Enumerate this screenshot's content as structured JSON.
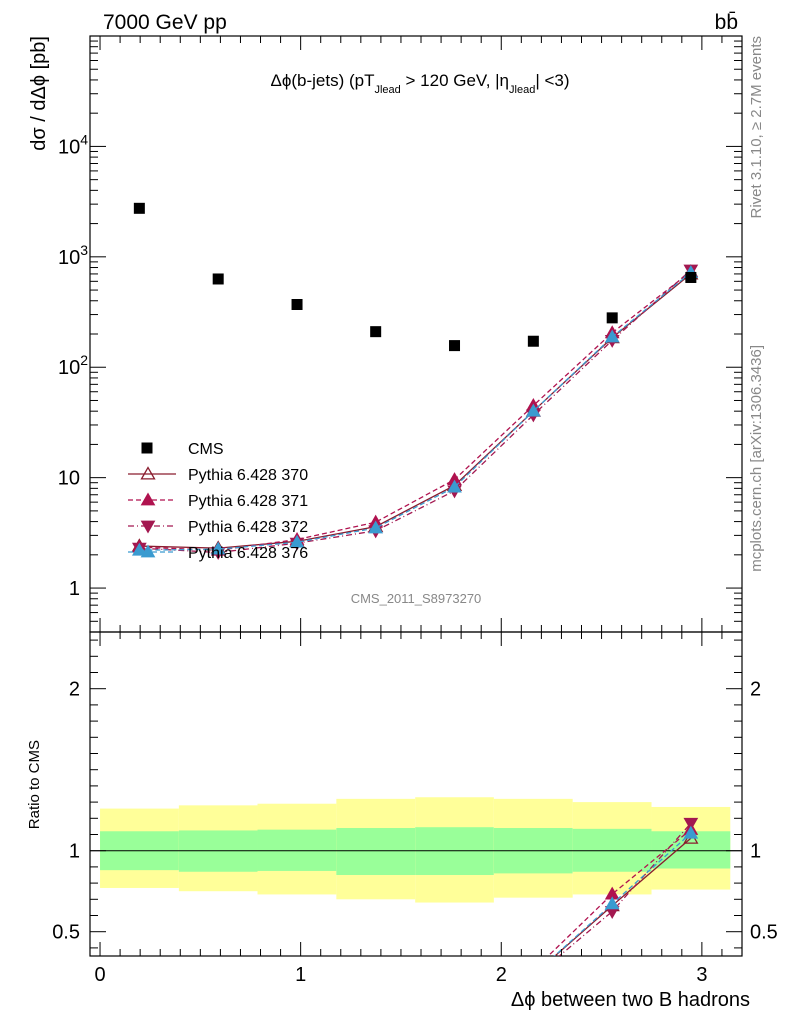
{
  "header": {
    "energy_label": "7000 GeV pp",
    "process_label": "bb̄"
  },
  "side_labels": {
    "rivet": "Rivet 3.1.10, ≥ 2.7M events",
    "mcplots": "mcplots.cern.ch [arXiv:1306.3436]"
  },
  "watermark": "CMS_2011_S8973270",
  "chart_data": {
    "type": "scatter",
    "title": "Δϕ(b-jets) (pT_Jlead > 120 GeV, |η_Jlead| <3)",
    "title_parts": {
      "a": "Δϕ(b-jets) (pT",
      "sub1": "Jlead",
      "b": " >  120 GeV, |η",
      "sub2": "Jlead",
      "c": "| <3)"
    },
    "xlabel": "Δϕ between two B hadrons",
    "ylabel": "dσ / dΔϕ [pb]",
    "ratio_ylabel": "Ratio to CMS",
    "xlim": [
      -0.05,
      3.2
    ],
    "ylim": [
      0.4,
      100000
    ],
    "yscale": "log",
    "ratio_ylim": [
      0.35,
      2.35
    ],
    "x_ticks": [
      "0",
      "1",
      "2",
      "3"
    ],
    "y_ticks": [
      "1",
      "10",
      "10^2",
      "10^3",
      "10^4"
    ],
    "ratio_y_ticks": [
      "0.5",
      "1",
      "2"
    ],
    "bin_edges": [
      0.0,
      0.393,
      0.785,
      1.178,
      1.571,
      1.963,
      2.356,
      2.749,
      3.1416
    ],
    "x": [
      0.196,
      0.589,
      0.982,
      1.374,
      1.767,
      2.16,
      2.553,
      2.945
    ],
    "cms": [
      2750,
      630,
      370,
      210,
      157,
      172,
      280,
      650
    ],
    "band_green": [
      [
        0.88,
        1.12
      ],
      [
        0.87,
        1.125
      ],
      [
        0.875,
        1.13
      ],
      [
        0.85,
        1.14
      ],
      [
        0.85,
        1.145
      ],
      [
        0.86,
        1.14
      ],
      [
        0.87,
        1.135
      ],
      [
        0.89,
        1.12
      ]
    ],
    "band_yellow": [
      [
        0.77,
        1.26
      ],
      [
        0.75,
        1.28
      ],
      [
        0.73,
        1.29
      ],
      [
        0.7,
        1.32
      ],
      [
        0.68,
        1.33
      ],
      [
        0.71,
        1.32
      ],
      [
        0.73,
        1.3
      ],
      [
        0.76,
        1.27
      ]
    ],
    "series": [
      {
        "name": "Pythia 6.428 370",
        "color": "#8a1c2e",
        "marker": "triangle-open",
        "dash": "",
        "values": [
          2.4,
          2.3,
          2.65,
          3.6,
          8.5,
          40,
          185,
          700
        ]
      },
      {
        "name": "Pythia 6.428 371",
        "color": "#b0124f",
        "marker": "triangle-up",
        "dash": "5,3",
        "values": [
          2.35,
          2.2,
          2.75,
          3.95,
          9.6,
          45,
          205,
          735
        ]
      },
      {
        "name": "Pythia 6.428 372",
        "color": "#a31850",
        "marker": "triangle-down",
        "dash": "6,3,1,3",
        "values": [
          2.3,
          2.1,
          2.55,
          3.3,
          7.6,
          37,
          175,
          760
        ]
      },
      {
        "name": "Pythia 6.428 376",
        "color": "#3a9bd0",
        "marker": "triangle-up",
        "dash": "5,3",
        "values": [
          2.2,
          2.25,
          2.6,
          3.5,
          8.2,
          40,
          188,
          720
        ]
      }
    ],
    "legend_data_label": "CMS",
    "legend_position": "bottom-left"
  }
}
